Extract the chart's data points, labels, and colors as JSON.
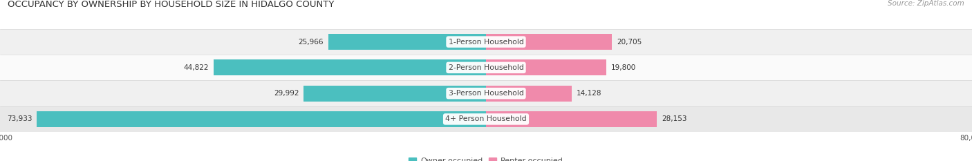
{
  "title": "OCCUPANCY BY OWNERSHIP BY HOUSEHOLD SIZE IN HIDALGO COUNTY",
  "source": "Source: ZipAtlas.com",
  "categories": [
    "1-Person Household",
    "2-Person Household",
    "3-Person Household",
    "4+ Person Household"
  ],
  "owner_values": [
    25966,
    44822,
    29992,
    73933
  ],
  "renter_values": [
    20705,
    19800,
    14128,
    28153
  ],
  "owner_color": "#4bbfbf",
  "renter_color": "#f08aab",
  "axis_max": 80000,
  "title_fontsize": 9.5,
  "source_fontsize": 7.5,
  "label_fontsize": 7.5,
  "tick_label_fontsize": 7.5,
  "legend_fontsize": 8,
  "category_label_fontsize": 7.8,
  "row_light": "#f2f2f2",
  "row_dark": "#e8e8e8"
}
